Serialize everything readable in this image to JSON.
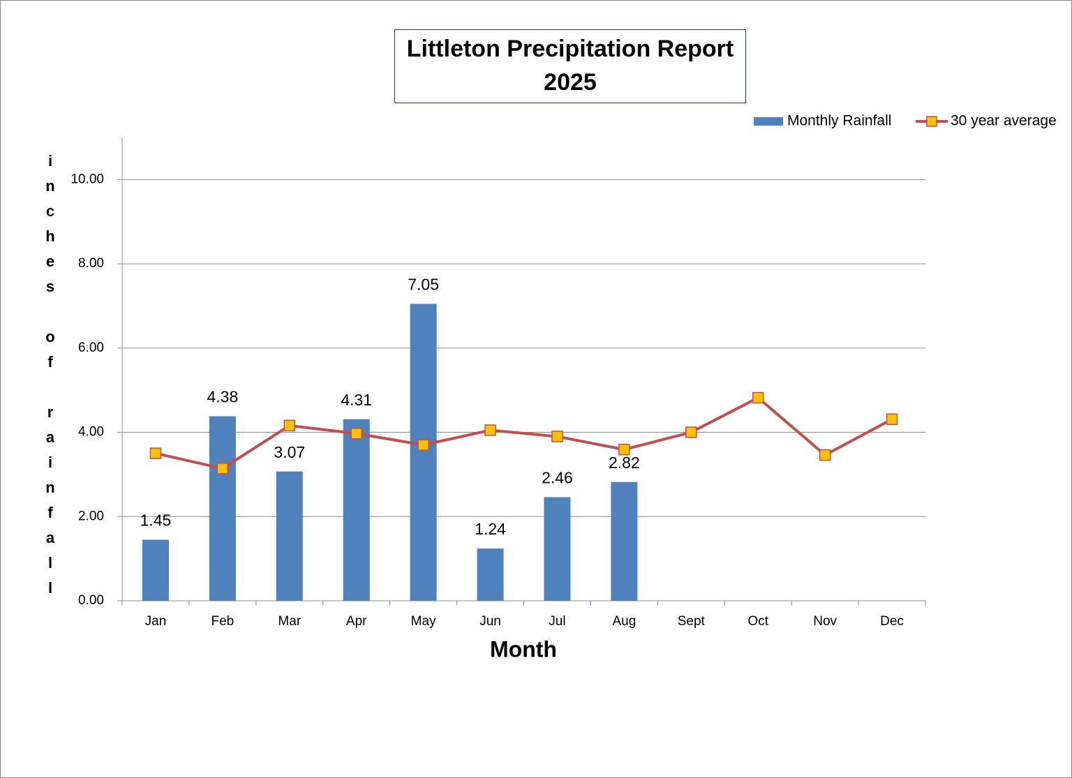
{
  "chart_data": {
    "type": "bar_line",
    "title": [
      "Littleton Precipitation Report",
      "2025"
    ],
    "xlabel": "Month",
    "ylabel": "inches of rainfall",
    "categories": [
      "Jan",
      "Feb",
      "Mar",
      "Apr",
      "May",
      "Jun",
      "Jul",
      "Aug",
      "Sept",
      "Oct",
      "Nov",
      "Dec"
    ],
    "series": [
      {
        "name": "Monthly Rainfall",
        "type": "bar",
        "color": "#4f81bd",
        "values": [
          1.45,
          4.38,
          3.07,
          4.31,
          7.05,
          1.24,
          2.46,
          2.82,
          null,
          null,
          null,
          null
        ]
      },
      {
        "name": "30 year average",
        "type": "line",
        "color": "#c0504d",
        "marker_color": "#ffc000",
        "values": [
          3.5,
          3.14,
          4.16,
          3.97,
          3.7,
          4.05,
          3.9,
          3.59,
          4.0,
          4.82,
          3.46,
          4.31
        ]
      }
    ],
    "ylim": [
      0,
      11
    ],
    "yticks": [
      {
        "value": 0,
        "label": "0.00"
      },
      {
        "value": 2,
        "label": "2.00"
      },
      {
        "value": 4,
        "label": "4.00"
      },
      {
        "value": 6,
        "label": "6.00"
      },
      {
        "value": 8,
        "label": "8.00"
      },
      {
        "value": 10,
        "label": "10.00"
      }
    ],
    "grid": true,
    "legend": "top-right"
  }
}
